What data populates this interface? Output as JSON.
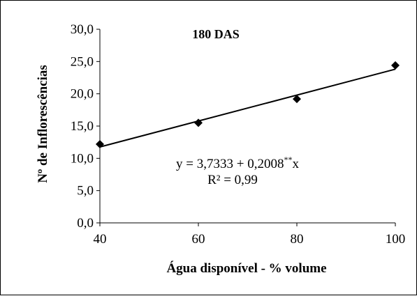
{
  "chart_data": {
    "type": "scatter",
    "title": "180 DAS",
    "xlabel": "Água disponível - % volume",
    "ylabel": "Nº de Inflorescências",
    "xlim": [
      40,
      100
    ],
    "ylim": [
      0,
      30
    ],
    "x_ticks": [
      "40",
      "60",
      "80",
      "100"
    ],
    "y_ticks": [
      "0,0",
      "5,0",
      "10,0",
      "15,0",
      "20,0",
      "25,0",
      "30,0"
    ],
    "x_tick_values": [
      40,
      60,
      80,
      100
    ],
    "y_tick_values": [
      0,
      5,
      10,
      15,
      20,
      25,
      30
    ],
    "grid": false,
    "series": [
      {
        "marker": "diamond",
        "color": "#000000",
        "x": [
          40,
          60,
          80,
          100
        ],
        "y": [
          12.2,
          15.5,
          19.2,
          24.4
        ]
      }
    ],
    "trendline": {
      "intercept": 3.7333,
      "slope": 0.2008,
      "color": "#000000",
      "equation_main": "y = 3,7333 + 0,2008",
      "equation_sup": "**",
      "equation_tail": "x",
      "r2": "R² = 0,99"
    }
  }
}
